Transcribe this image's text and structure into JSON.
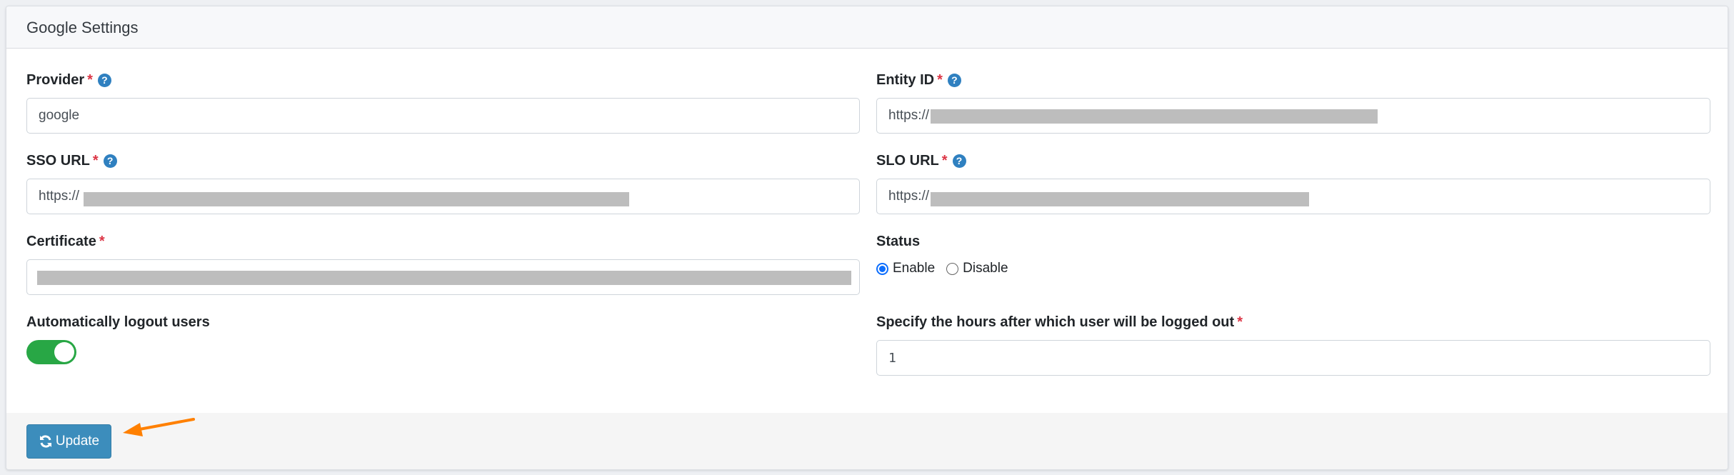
{
  "card": {
    "title": "Google Settings"
  },
  "fields": {
    "provider": {
      "label": "Provider",
      "required": "*",
      "value": "google"
    },
    "entity_id": {
      "label": "Entity ID",
      "required": "*",
      "value": "https://"
    },
    "sso_url": {
      "label": "SSO URL",
      "required": "*",
      "value": "https://"
    },
    "slo_url": {
      "label": "SLO URL",
      "required": "*",
      "value": "https://"
    },
    "certificate": {
      "label": "Certificate",
      "required": "*"
    },
    "status": {
      "label": "Status",
      "options": [
        "Enable",
        "Disable"
      ],
      "selected": "Enable"
    },
    "auto_logout": {
      "label": "Automatically logout users",
      "enabled": true
    },
    "logout_hours": {
      "label": "Specify the hours after which user will be logged out",
      "required": "*",
      "value": "1"
    }
  },
  "icons": {
    "help": "?",
    "update": "refresh-icon"
  },
  "footer": {
    "update_label": "Update"
  },
  "colors": {
    "primary": "#3c8dbc",
    "toggle_on": "#28a745",
    "required": "#dc3545",
    "annotation_arrow": "#ff8000"
  }
}
